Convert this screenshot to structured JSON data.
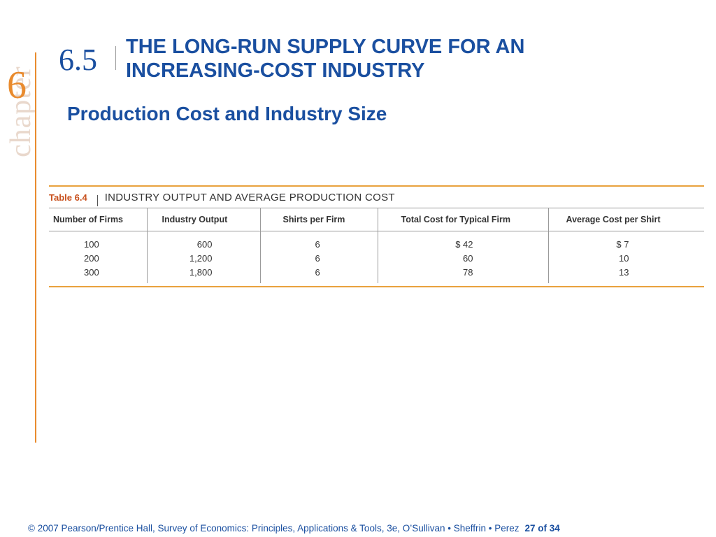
{
  "chapter": {
    "word": "chapter",
    "number": "6"
  },
  "section": {
    "number": "6.5",
    "title_line1": "THE LONG-RUN SUPPLY CURVE FOR AN",
    "title_line2": "INCREASING-COST INDUSTRY",
    "subtitle": "Production Cost and Industry Size"
  },
  "table": {
    "label": "Table 6.4",
    "title": "INDUSTRY OUTPUT AND AVERAGE PRODUCTION COST",
    "columns": [
      "Number of Firms",
      "Industry Output",
      "Shirts per Firm",
      "Total Cost for Typical Firm",
      "Average Cost per Shirt"
    ],
    "rows": [
      [
        "100",
        "600",
        "6",
        "$ 42",
        "$ 7"
      ],
      [
        "200",
        "1,200",
        "6",
        "60",
        "10"
      ],
      [
        "300",
        "1,800",
        "6",
        "78",
        "13"
      ]
    ]
  },
  "footer": {
    "copyright": "© 2007 Pearson/Prentice Hall, Survey of Economics: Principles, Applications & Tools, 3e, O’Sullivan • Sheffrin • Perez",
    "page": "27 of 34"
  },
  "colors": {
    "blue": "#1a4fa0",
    "orange": "#e98b2e",
    "table_rule": "#e9a23e",
    "table_label": "#c8511e"
  }
}
